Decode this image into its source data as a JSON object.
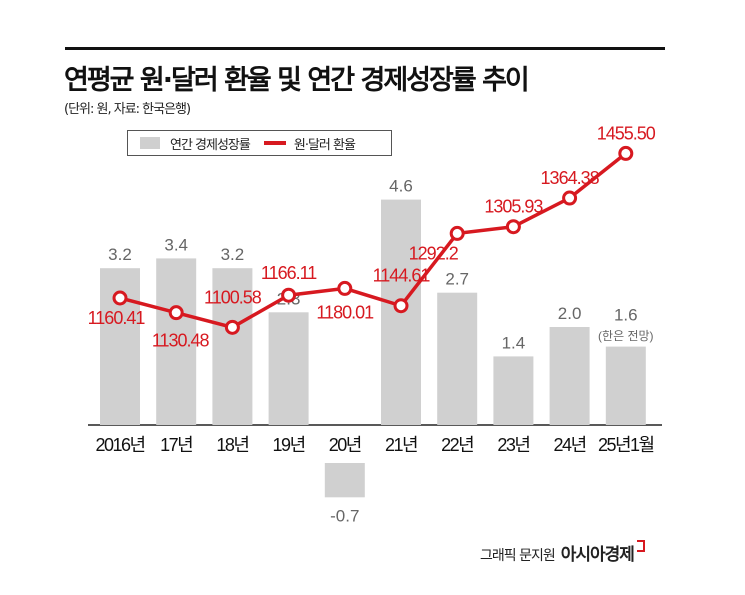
{
  "header": {
    "title": "연평균 원·달러 환율 및 연간 경제성장률 추이",
    "subtitle": "(단위: 원, 자료: 한국은행)"
  },
  "legend": {
    "bar_label": "연간 경제성장률",
    "line_label": "원·달러 환율"
  },
  "credit": {
    "text": "그래픽 문지원",
    "logo": "아시아경제"
  },
  "chart_data": {
    "type": "bar+line",
    "categories": [
      "2016년",
      "17년",
      "18년",
      "19년",
      "20년",
      "21년",
      "22년",
      "23년",
      "24년",
      "25년1월"
    ],
    "series": [
      {
        "name": "연간 경제성장률",
        "type": "bar",
        "color": "#d0d0d0",
        "values": [
          3.2,
          3.4,
          3.2,
          2.3,
          -0.7,
          4.6,
          2.7,
          1.4,
          2.0,
          1.6
        ],
        "labels": [
          "3.2",
          "3.4",
          "3.2",
          "2.3",
          "-0.7",
          "4.6",
          "2.7",
          "1.4",
          "2.0",
          "1.6"
        ]
      },
      {
        "name": "원·달러 환율",
        "type": "line",
        "color": "#d71920",
        "values": [
          1160.41,
          1130.48,
          1100.58,
          1166.11,
          1180.01,
          1144.61,
          1292.2,
          1305.93,
          1364.38,
          1455.5
        ],
        "labels": [
          "1160.41",
          "1130.48",
          "1100.58",
          "1166.11",
          "1180.01",
          "1144.61",
          "1292.2",
          "1305.93",
          "1364.38",
          "1455.50"
        ]
      }
    ],
    "annotations": [
      "(한은 전망)"
    ]
  }
}
